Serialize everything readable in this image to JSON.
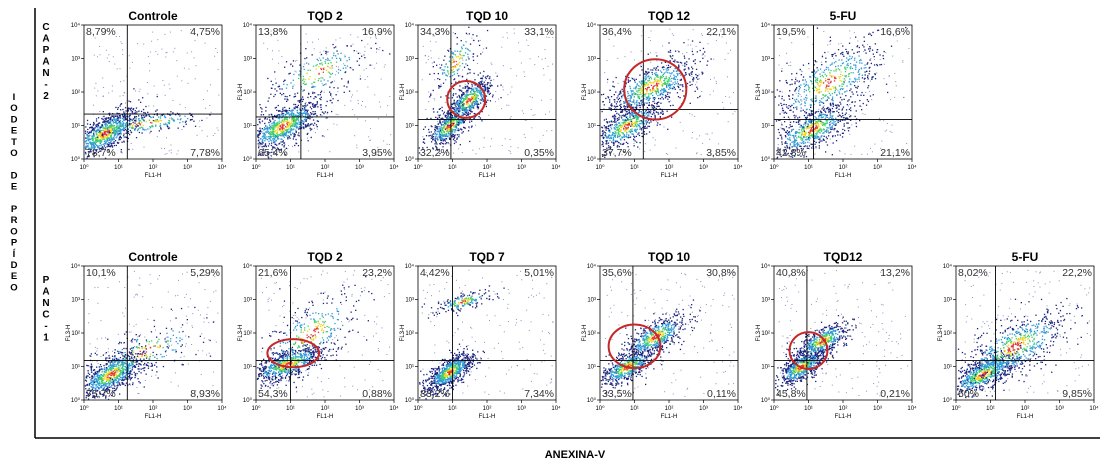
{
  "figure": {
    "y_axis_title_letters": [
      "I",
      "O",
      "D",
      "E",
      "T",
      "O",
      "",
      "D",
      "E",
      "",
      "P",
      "R",
      "O",
      "P",
      "Í",
      "D",
      "E",
      "O"
    ],
    "x_axis_title": "ANEXINA-V",
    "row_labels": [
      {
        "letters": [
          "C",
          "A",
          "P",
          "A",
          "N",
          "-",
          "2"
        ]
      },
      {
        "letters": [
          "P",
          "A",
          "N",
          "C",
          "-",
          "1"
        ]
      }
    ]
  },
  "chart_data": [
    {
      "type": "scatter",
      "row": 0,
      "title": "Controle",
      "xlabel": "FL1-H",
      "ylabel": "",
      "x_ticks": [
        "10⁰",
        "10¹",
        "10²",
        "10³",
        "10⁴"
      ],
      "y_ticks": [
        "10⁰",
        "10¹",
        "10²",
        "10³",
        "10⁴"
      ],
      "log_scale": true,
      "xlim": [
        1,
        10000
      ],
      "ylim": [
        1,
        10000
      ],
      "quadrant_gate": {
        "x": 18,
        "y": 22
      },
      "quadrant_pct": {
        "ul": "8,79%",
        "ur": "4,75%",
        "ll": "78,7%",
        "lr": "7,78%"
      },
      "highlight": null,
      "clusters": [
        {
          "x": 4,
          "y": 6,
          "sx": 0.5,
          "sy": 0.45,
          "n": 900
        },
        {
          "x": 60,
          "y": 12,
          "sx": 1.0,
          "sy": 0.25,
          "n": 220
        }
      ]
    },
    {
      "type": "scatter",
      "row": 0,
      "title": "TQD 2",
      "xlabel": "FL1-H",
      "ylabel": "FL3-H",
      "x_ticks": [
        "10⁰",
        "10¹",
        "10²",
        "10³",
        "10⁴"
      ],
      "y_ticks": [
        "10⁰",
        "10¹",
        "10²",
        "10³",
        "10⁴"
      ],
      "log_scale": true,
      "xlim": [
        1,
        10000
      ],
      "ylim": [
        1,
        10000
      ],
      "quadrant_gate": {
        "x": 20,
        "y": 18
      },
      "quadrant_pct": {
        "ul": "13,8%",
        "ur": "16,9%",
        "ll": "65,4%",
        "lr": "3,95%"
      },
      "highlight": null,
      "clusters": [
        {
          "x": 6,
          "y": 10,
          "sx": 0.55,
          "sy": 0.5,
          "n": 900
        },
        {
          "x": 60,
          "y": 400,
          "sx": 0.8,
          "sy": 0.6,
          "n": 220
        }
      ]
    },
    {
      "type": "scatter",
      "row": 0,
      "title": "TQD 10",
      "xlabel": "FL1-H",
      "ylabel": "FL3-H",
      "x_ticks": [
        "10⁰",
        "10¹",
        "10²",
        "10³",
        "10⁴"
      ],
      "y_ticks": [
        "10⁰",
        "10¹",
        "10²",
        "10³",
        "10⁴"
      ],
      "log_scale": true,
      "xlim": [
        1,
        10000
      ],
      "ylim": [
        1,
        10000
      ],
      "quadrant_gate": {
        "x": 9,
        "y": 15
      },
      "quadrant_pct": {
        "ul": "34,3%",
        "ur": "33,1%",
        "ll": "32,2%",
        "lr": "0,35%"
      },
      "highlight": {
        "cx": 25,
        "cy": 60,
        "rx": 0.55,
        "ry": 0.55
      },
      "clusters": [
        {
          "x": 8,
          "y": 10,
          "sx": 0.35,
          "sy": 0.4,
          "n": 500
        },
        {
          "x": 30,
          "y": 60,
          "sx": 0.35,
          "sy": 0.4,
          "n": 500
        },
        {
          "x": 12,
          "y": 800,
          "sx": 0.35,
          "sy": 0.6,
          "n": 160
        }
      ]
    },
    {
      "type": "scatter",
      "row": 0,
      "title": "TQD 12",
      "xlabel": "FL1-H",
      "ylabel": "FL3-H",
      "x_ticks": [
        "10⁰",
        "10¹",
        "10²",
        "10³",
        "10⁴"
      ],
      "y_ticks": [
        "10⁰",
        "10¹",
        "10²",
        "10³",
        "10⁴"
      ],
      "log_scale": true,
      "xlim": [
        1,
        10000
      ],
      "ylim": [
        1,
        10000
      ],
      "quadrant_gate": {
        "x": 18,
        "y": 30
      },
      "quadrant_pct": {
        "ul": "36,4%",
        "ur": "22,1%",
        "ll": "37,7%",
        "lr": "3,85%"
      },
      "highlight": {
        "cx": 40,
        "cy": 120,
        "rx": 0.9,
        "ry": 0.9
      },
      "clusters": [
        {
          "x": 6,
          "y": 10,
          "sx": 0.5,
          "sy": 0.45,
          "n": 600
        },
        {
          "x": 30,
          "y": 150,
          "sx": 0.7,
          "sy": 0.55,
          "n": 700
        }
      ]
    },
    {
      "type": "scatter",
      "row": 0,
      "title": "5-FU",
      "xlabel": "FL1-H",
      "ylabel": "FL3-H",
      "x_ticks": [
        "10⁰",
        "10¹",
        "10²",
        "10³",
        "10⁴"
      ],
      "y_ticks": [
        "10⁰",
        "10¹",
        "10²",
        "10³",
        "10⁴"
      ],
      "log_scale": true,
      "xlim": [
        1,
        10000
      ],
      "ylim": [
        1,
        10000
      ],
      "quadrant_gate": {
        "x": 14,
        "y": 15
      },
      "quadrant_pct": {
        "ul": "19,5%",
        "ur": "16,6%",
        "ll": "42,8%",
        "lr": "21,1%"
      },
      "highlight": null,
      "clusters": [
        {
          "x": 12,
          "y": 8,
          "sx": 0.6,
          "sy": 0.5,
          "n": 650
        },
        {
          "x": 40,
          "y": 200,
          "sx": 0.85,
          "sy": 0.8,
          "n": 550
        }
      ]
    },
    {
      "type": "scatter",
      "row": 1,
      "title": "Controle",
      "xlabel": "FL1-H",
      "ylabel": "FL3-H",
      "x_ticks": [
        "10⁰",
        "10¹",
        "10²",
        "10³",
        "10⁴"
      ],
      "y_ticks": [
        "10⁰",
        "10¹",
        "10²",
        "10³",
        "10⁴"
      ],
      "log_scale": true,
      "xlim": [
        1,
        10000
      ],
      "ylim": [
        1,
        10000
      ],
      "quadrant_gate": {
        "x": 18,
        "y": 15
      },
      "quadrant_pct": {
        "ul": "10,1%",
        "ur": "5,29%",
        "ll": "75,7%",
        "lr": "8,93%"
      },
      "highlight": null,
      "clusters": [
        {
          "x": 6,
          "y": 6,
          "sx": 0.5,
          "sy": 0.45,
          "n": 900
        },
        {
          "x": 60,
          "y": 30,
          "sx": 0.9,
          "sy": 0.6,
          "n": 180
        }
      ]
    },
    {
      "type": "scatter",
      "row": 1,
      "title": "TQD 2",
      "xlabel": "FL1-H",
      "ylabel": "FL3-H",
      "x_ticks": [
        "10⁰",
        "10¹",
        "10²",
        "10³",
        "10⁴"
      ],
      "y_ticks": [
        "10⁰",
        "10¹",
        "10²",
        "10³",
        "10⁴"
      ],
      "log_scale": true,
      "xlim": [
        1,
        10000
      ],
      "ylim": [
        1,
        10000
      ],
      "quadrant_gate": {
        "x": 10,
        "y": 15
      },
      "quadrant_pct": {
        "ul": "21,6%",
        "ur": "23,2%",
        "ll": "54,3%",
        "lr": "0,88%"
      },
      "highlight": {
        "cx": 12,
        "cy": 25,
        "rx": 0.75,
        "ry": 0.42
      },
      "clusters": [
        {
          "x": 8,
          "y": 12,
          "sx": 0.55,
          "sy": 0.35,
          "n": 700
        },
        {
          "x": 40,
          "y": 100,
          "sx": 0.8,
          "sy": 0.8,
          "n": 300
        }
      ]
    },
    {
      "type": "scatter",
      "row": 1,
      "title": "TQD 7",
      "xlabel": "FL1-H",
      "ylabel": "FL3-H",
      "x_ticks": [
        "10⁰",
        "10¹",
        "10²",
        "10³",
        "10⁴"
      ],
      "y_ticks": [
        "10⁰",
        "10¹",
        "10²",
        "10³",
        "10⁴"
      ],
      "log_scale": true,
      "xlim": [
        1,
        10000
      ],
      "ylim": [
        1,
        10000
      ],
      "quadrant_gate": {
        "x": 10,
        "y": 15
      },
      "quadrant_pct": {
        "ul": "4,42%",
        "ur": "5,01%",
        "ll": "83,2%",
        "lr": "7,34%"
      },
      "highlight": null,
      "clusters": [
        {
          "x": 8,
          "y": 7,
          "sx": 0.35,
          "sy": 0.35,
          "n": 800
        },
        {
          "x": 20,
          "y": 900,
          "sx": 0.4,
          "sy": 0.2,
          "n": 180
        }
      ]
    },
    {
      "type": "scatter",
      "row": 1,
      "title": "TQD 10",
      "xlabel": "FL1-H",
      "ylabel": "FL3-H",
      "x_ticks": [
        "10⁰",
        "10¹",
        "10²",
        "10³",
        "10⁴"
      ],
      "y_ticks": [
        "10⁰",
        "10¹",
        "10²",
        "10³",
        "10⁴"
      ],
      "log_scale": true,
      "xlim": [
        1,
        10000
      ],
      "ylim": [
        1,
        10000
      ],
      "quadrant_gate": {
        "x": 9,
        "y": 15
      },
      "quadrant_pct": {
        "ul": "35,6%",
        "ur": "30,8%",
        "ll": "33,5%",
        "lr": "0,11%"
      },
      "highlight": {
        "cx": 10,
        "cy": 40,
        "rx": 0.75,
        "ry": 0.65
      },
      "clusters": [
        {
          "x": 6,
          "y": 10,
          "sx": 0.4,
          "sy": 0.35,
          "n": 550
        },
        {
          "x": 40,
          "y": 80,
          "sx": 0.45,
          "sy": 0.4,
          "n": 550
        }
      ]
    },
    {
      "type": "scatter",
      "row": 1,
      "title": "TQD12",
      "xlabel": "FL1-H",
      "ylabel": "FL3-H",
      "x_ticks": [
        "10⁰",
        "10¹",
        "10²",
        "10³",
        "10⁴"
      ],
      "y_ticks": [
        "10⁰",
        "10¹",
        "10²",
        "10³",
        "10⁴"
      ],
      "log_scale": true,
      "xlim": [
        1,
        10000
      ],
      "ylim": [
        1,
        10000
      ],
      "quadrant_gate": {
        "x": 9,
        "y": 15
      },
      "quadrant_pct": {
        "ul": "40,8%",
        "ur": "13,2%",
        "ll": "45,8%",
        "lr": "0,21%"
      },
      "highlight": {
        "cx": 10,
        "cy": 30,
        "rx": 0.55,
        "ry": 0.55
      },
      "clusters": [
        {
          "x": 6,
          "y": 10,
          "sx": 0.35,
          "sy": 0.35,
          "n": 600
        },
        {
          "x": 25,
          "y": 60,
          "sx": 0.4,
          "sy": 0.35,
          "n": 500
        }
      ]
    },
    {
      "type": "scatter",
      "row": 1,
      "title": "5-FU",
      "xlabel": "FL1-H",
      "ylabel": "FL3-H",
      "x_ticks": [
        "10⁰",
        "10¹",
        "10²",
        "10³",
        "10⁴"
      ],
      "y_ticks": [
        "10⁰",
        "10¹",
        "10²",
        "10³",
        "10⁴"
      ],
      "log_scale": true,
      "xlim": [
        1,
        10000
      ],
      "ylim": [
        1,
        10000
      ],
      "quadrant_gate": {
        "x": 14,
        "y": 15
      },
      "quadrant_pct": {
        "ul": "8,02%",
        "ur": "22,2%",
        "ll": "60%",
        "lr": "9,85%"
      },
      "highlight": null,
      "clusters": [
        {
          "x": 6,
          "y": 6,
          "sx": 0.5,
          "sy": 0.4,
          "n": 700
        },
        {
          "x": 50,
          "y": 40,
          "sx": 0.8,
          "sy": 0.7,
          "n": 650
        }
      ]
    }
  ],
  "colors": {
    "scatter_low": "#1a237e",
    "scatter_mid": "#2e9bd6",
    "scatter_high1": "#3fcf6a",
    "scatter_high2": "#f2d51c",
    "scatter_peak": "#e53935",
    "highlight": "#c62828",
    "gate_line": "#000000"
  }
}
